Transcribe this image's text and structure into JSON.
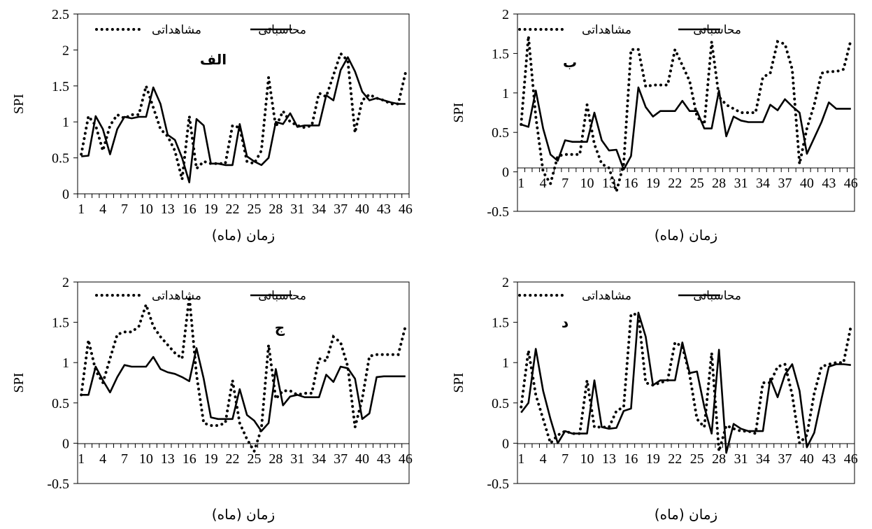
{
  "chart_data": [
    {
      "type": "line",
      "panel_label": "الف",
      "xlabel": "زمان (ماه)",
      "ylabel": "SPI",
      "ylim": [
        0,
        2.5
      ],
      "yticks": [
        "0",
        "0.5",
        "1",
        "1.5",
        "2",
        "2.5"
      ],
      "xtick_labels": [
        "1",
        "4",
        "7",
        "10",
        "13",
        "16",
        "19",
        "22",
        "25",
        "28",
        "31",
        "34",
        "37",
        "40",
        "43",
        "46"
      ],
      "legend_position": "top",
      "x": [
        1,
        2,
        3,
        4,
        5,
        6,
        7,
        8,
        9,
        10,
        11,
        12,
        13,
        14,
        15,
        16,
        17,
        18,
        19,
        20,
        21,
        22,
        23,
        24,
        25,
        26,
        27,
        28,
        29,
        30,
        31,
        32,
        33,
        34,
        35,
        36,
        37,
        38,
        39,
        40,
        41,
        42,
        43,
        44,
        45,
        46
      ],
      "series": [
        {
          "name": "مشاهداتی",
          "style": "dotted",
          "values": [
            0.55,
            1.08,
            0.95,
            0.6,
            0.95,
            1.1,
            1.05,
            1.1,
            1.1,
            1.5,
            1.2,
            0.9,
            0.8,
            0.6,
            0.2,
            1.08,
            0.35,
            0.45,
            0.42,
            0.42,
            0.42,
            0.95,
            0.92,
            0.45,
            0.42,
            0.6,
            1.62,
            0.93,
            1.15,
            1.0,
            0.95,
            0.92,
            0.95,
            1.4,
            1.35,
            1.65,
            1.95,
            1.85,
            0.85,
            1.3,
            1.38,
            1.33,
            1.3,
            1.25,
            1.25,
            1.68
          ]
        },
        {
          "name": "محاسباتی",
          "style": "solid",
          "values": [
            0.52,
            0.53,
            1.08,
            0.9,
            0.55,
            0.9,
            1.07,
            1.05,
            1.07,
            1.07,
            1.48,
            1.25,
            0.82,
            0.75,
            0.5,
            0.16,
            1.04,
            0.95,
            0.42,
            0.42,
            0.4,
            0.4,
            0.97,
            0.52,
            0.45,
            0.4,
            0.5,
            1.0,
            0.97,
            1.12,
            0.93,
            0.95,
            0.95,
            0.95,
            1.37,
            1.3,
            1.72,
            1.9,
            1.7,
            1.42,
            1.3,
            1.33,
            1.3,
            1.27,
            1.25,
            1.25
          ]
        }
      ]
    },
    {
      "type": "line",
      "panel_label": "ب",
      "xlabel": "زمان (ماه)",
      "ylabel": "SPI",
      "ylim": [
        -0.5,
        2
      ],
      "yticks": [
        "-0.5",
        "0",
        "0.5",
        "1",
        "1.5",
        "2"
      ],
      "xtick_labels": [
        "1",
        "4",
        "7",
        "10",
        "13",
        "16",
        "19",
        "22",
        "25",
        "28",
        "31",
        "34",
        "37",
        "40",
        "43",
        "46"
      ],
      "legend_position": "top",
      "x": [
        1,
        2,
        3,
        4,
        5,
        6,
        7,
        8,
        9,
        10,
        11,
        12,
        13,
        14,
        15,
        16,
        17,
        18,
        19,
        20,
        21,
        22,
        23,
        24,
        25,
        26,
        27,
        28,
        29,
        30,
        31,
        32,
        33,
        34,
        35,
        36,
        37,
        38,
        39,
        40,
        41,
        42,
        43,
        44,
        45,
        46
      ],
      "series": [
        {
          "name": "مشاهداتی",
          "style": "dotted",
          "values": [
            0.6,
            1.72,
            0.7,
            0.0,
            -0.15,
            0.2,
            0.22,
            0.22,
            0.22,
            0.85,
            0.35,
            0.1,
            0.05,
            -0.25,
            0.1,
            1.55,
            1.55,
            1.08,
            1.1,
            1.1,
            1.1,
            1.55,
            1.35,
            1.15,
            0.7,
            0.6,
            1.65,
            0.95,
            0.85,
            0.8,
            0.75,
            0.75,
            0.75,
            1.2,
            1.25,
            1.65,
            1.62,
            1.3,
            0.1,
            0.55,
            0.85,
            1.25,
            1.27,
            1.27,
            1.3,
            1.67
          ]
        },
        {
          "name": "محاسباتی",
          "style": "solid",
          "values": [
            0.6,
            0.57,
            1.03,
            0.55,
            0.22,
            0.14,
            0.4,
            0.38,
            0.38,
            0.38,
            0.75,
            0.4,
            0.27,
            0.28,
            0.03,
            0.2,
            1.07,
            0.82,
            0.7,
            0.77,
            0.77,
            0.77,
            0.9,
            0.77,
            0.77,
            0.55,
            0.55,
            1.03,
            0.45,
            0.7,
            0.65,
            0.63,
            0.63,
            0.63,
            0.85,
            0.78,
            0.92,
            0.83,
            0.75,
            0.23,
            0.43,
            0.63,
            0.88,
            0.8,
            0.8,
            0.8
          ]
        }
      ]
    },
    {
      "type": "line",
      "panel_label": "ج",
      "xlabel": "زمان (ماه)",
      "ylabel": "SPI",
      "ylim": [
        -0.5,
        2
      ],
      "yticks": [
        "-0.5",
        "0",
        "0.5",
        "1",
        "1.5",
        "2"
      ],
      "xtick_labels": [
        "1",
        "4",
        "7",
        "10",
        "13",
        "16",
        "19",
        "22",
        "25",
        "28",
        "31",
        "34",
        "37",
        "40",
        "43",
        "46"
      ],
      "legend_position": "top",
      "x": [
        1,
        2,
        3,
        4,
        5,
        6,
        7,
        8,
        9,
        10,
        11,
        12,
        13,
        14,
        15,
        16,
        17,
        18,
        19,
        20,
        21,
        22,
        23,
        24,
        25,
        26,
        27,
        28,
        29,
        30,
        31,
        32,
        33,
        34,
        35,
        36,
        37,
        38,
        39,
        40,
        41,
        42,
        43,
        44,
        45,
        46
      ],
      "series": [
        {
          "name": "مشاهداتی",
          "style": "dotted",
          "values": [
            0.6,
            1.28,
            0.9,
            0.75,
            1.05,
            1.35,
            1.38,
            1.38,
            1.45,
            1.72,
            1.45,
            1.32,
            1.22,
            1.12,
            1.05,
            1.82,
            0.85,
            0.25,
            0.22,
            0.22,
            0.25,
            0.78,
            0.25,
            0.05,
            -0.1,
            0.18,
            1.22,
            0.55,
            0.65,
            0.65,
            0.6,
            0.62,
            0.62,
            1.05,
            1.02,
            1.32,
            1.25,
            0.95,
            0.2,
            0.55,
            1.08,
            1.1,
            1.1,
            1.1,
            1.1,
            1.45
          ]
        },
        {
          "name": "محاسباتی",
          "style": "solid",
          "values": [
            0.6,
            0.6,
            0.95,
            0.78,
            0.63,
            0.82,
            0.97,
            0.95,
            0.95,
            0.95,
            1.07,
            0.92,
            0.88,
            0.86,
            0.82,
            0.77,
            1.18,
            0.8,
            0.32,
            0.3,
            0.3,
            0.3,
            0.67,
            0.35,
            0.28,
            0.15,
            0.25,
            0.92,
            0.47,
            0.58,
            0.6,
            0.57,
            0.57,
            0.57,
            0.85,
            0.76,
            0.95,
            0.93,
            0.8,
            0.3,
            0.37,
            0.82,
            0.83,
            0.83,
            0.83,
            0.83
          ]
        }
      ]
    },
    {
      "type": "line",
      "panel_label": "د",
      "xlabel": "زمان (ماه)",
      "ylabel": "SPI",
      "ylim": [
        -0.5,
        2
      ],
      "yticks": [
        "-0.5",
        "0",
        "0.5",
        "1",
        "1.5",
        "2"
      ],
      "xtick_labels": [
        "1",
        "4",
        "7",
        "10",
        "13",
        "16",
        "19",
        "22",
        "25",
        "28",
        "31",
        "34",
        "37",
        "40",
        "43",
        "46"
      ],
      "legend_position": "top",
      "x": [
        1,
        2,
        3,
        4,
        5,
        6,
        7,
        8,
        9,
        10,
        11,
        12,
        13,
        14,
        15,
        16,
        17,
        18,
        19,
        20,
        21,
        22,
        23,
        24,
        25,
        26,
        27,
        28,
        29,
        30,
        31,
        32,
        33,
        34,
        35,
        36,
        37,
        38,
        39,
        40,
        41,
        42,
        43,
        44,
        45,
        46
      ],
      "series": [
        {
          "name": "مشاهداتی",
          "style": "dotted",
          "values": [
            0.45,
            1.15,
            0.6,
            0.3,
            0.0,
            0.1,
            0.15,
            0.12,
            0.12,
            0.78,
            0.2,
            0.2,
            0.2,
            0.4,
            0.45,
            1.6,
            1.6,
            0.75,
            0.72,
            0.75,
            0.78,
            1.25,
            1.2,
            0.85,
            0.3,
            0.2,
            1.12,
            -0.1,
            0.22,
            0.18,
            0.15,
            0.15,
            0.12,
            0.75,
            0.75,
            0.95,
            0.98,
            0.6,
            0.0,
            0.1,
            0.62,
            0.95,
            0.98,
            1.0,
            1.0,
            1.45
          ]
        },
        {
          "name": "محاسباتی",
          "style": "solid",
          "values": [
            0.38,
            0.5,
            1.17,
            0.65,
            0.3,
            0.0,
            0.15,
            0.12,
            0.12,
            0.12,
            0.78,
            0.2,
            0.18,
            0.19,
            0.4,
            0.43,
            1.62,
            1.32,
            0.72,
            0.78,
            0.78,
            0.78,
            1.25,
            0.87,
            0.89,
            0.45,
            0.12,
            1.16,
            -0.12,
            0.24,
            0.18,
            0.15,
            0.15,
            0.15,
            0.8,
            0.57,
            0.85,
            0.98,
            0.65,
            -0.05,
            0.13,
            0.55,
            0.95,
            0.98,
            0.98,
            0.97
          ]
        }
      ]
    }
  ]
}
